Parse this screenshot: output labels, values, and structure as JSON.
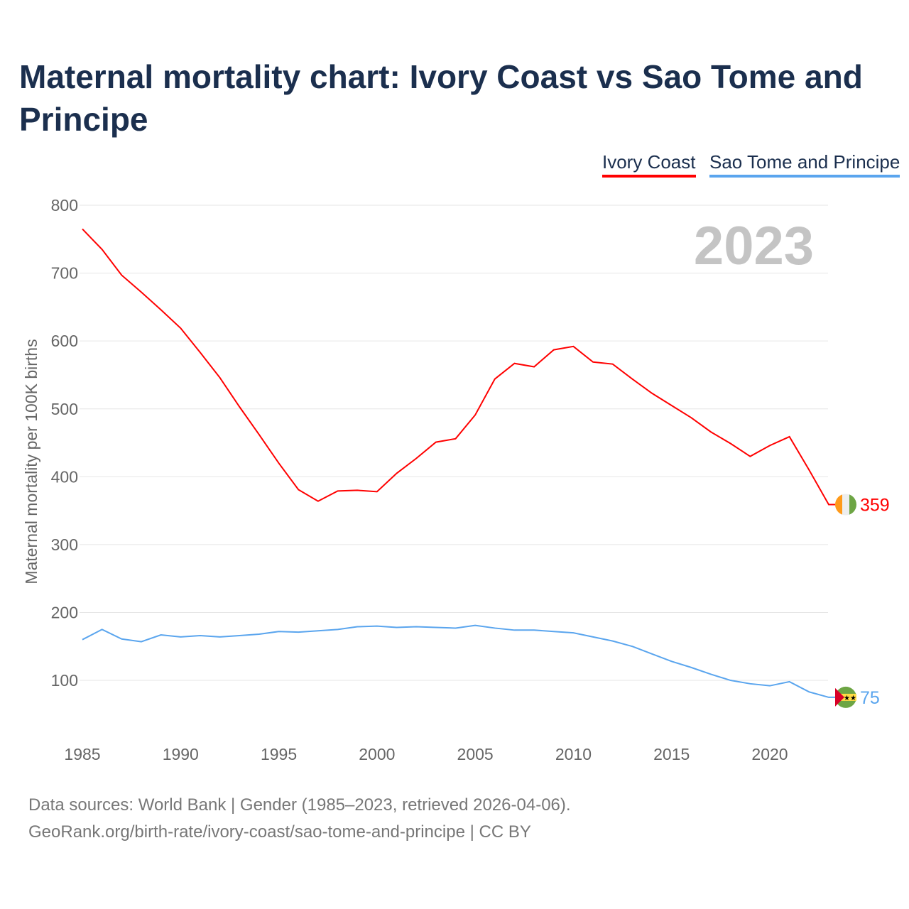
{
  "title": "Maternal mortality chart: Ivory Coast vs Sao Tome and Principe",
  "footer": {
    "line1": "Data sources: World Bank | Gender (1985–2023, retrieved 2026-04-06).",
    "line2": "GeoRank.org/birth-rate/ivory-coast/sao-tome-and-principe | CC BY"
  },
  "chart_data": {
    "type": "line",
    "title": "Maternal mortality chart: Ivory Coast vs Sao Tome and Principe",
    "ylabel": "Maternal mortality per 100K births",
    "xlabel": "",
    "year_label": "2023",
    "ylim": [
      0,
      800
    ],
    "xlim": [
      1985,
      2023
    ],
    "yticks": [
      100,
      200,
      300,
      400,
      500,
      600,
      700,
      800
    ],
    "xticks": [
      1985,
      1990,
      1995,
      2000,
      2005,
      2010,
      2015,
      2020
    ],
    "grid": true,
    "legend": "top-right",
    "x": [
      1985,
      1986,
      1987,
      1988,
      1989,
      1990,
      1991,
      1992,
      1993,
      1994,
      1995,
      1996,
      1997,
      1998,
      1999,
      2000,
      2001,
      2002,
      2003,
      2004,
      2005,
      2006,
      2007,
      2008,
      2009,
      2010,
      2011,
      2012,
      2013,
      2014,
      2015,
      2016,
      2017,
      2018,
      2019,
      2020,
      2021,
      2022,
      2023
    ],
    "series": [
      {
        "name": "Ivory Coast",
        "color": "#ff0000",
        "end_label": "359",
        "values": [
          765,
          735,
          697,
          672,
          646,
          619,
          583,
          546,
          503,
          462,
          420,
          381,
          364,
          379,
          380,
          378,
          405,
          427,
          451,
          456,
          491,
          544,
          567,
          562,
          587,
          592,
          569,
          566,
          544,
          523,
          505,
          487,
          466,
          449,
          430,
          446,
          459,
          410,
          359
        ]
      },
      {
        "name": "Sao Tome and Principe",
        "color": "#5aa5ee",
        "end_label": "75",
        "values": [
          160,
          175,
          161,
          157,
          167,
          164,
          166,
          164,
          166,
          168,
          172,
          171,
          173,
          175,
          179,
          180,
          178,
          179,
          178,
          177,
          181,
          177,
          174,
          174,
          172,
          170,
          164,
          158,
          150,
          139,
          128,
          119,
          109,
          100,
          95,
          92,
          98,
          83,
          75
        ]
      }
    ]
  }
}
